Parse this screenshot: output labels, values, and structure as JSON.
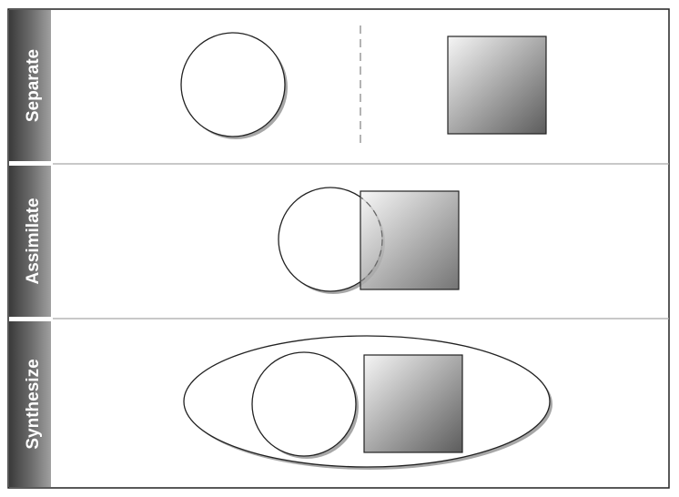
{
  "diagram": {
    "rows": [
      {
        "label": "Separate"
      },
      {
        "label": "Assimilate"
      },
      {
        "label": "Synthesize"
      }
    ]
  },
  "colors": {
    "label_dark": "#3a3a3a",
    "label_light": "#9a9a9a",
    "square_light": "#f4f4f4",
    "square_dark": "#5e5e5e",
    "outline": "#222222",
    "divider": "#a8a8a8"
  }
}
